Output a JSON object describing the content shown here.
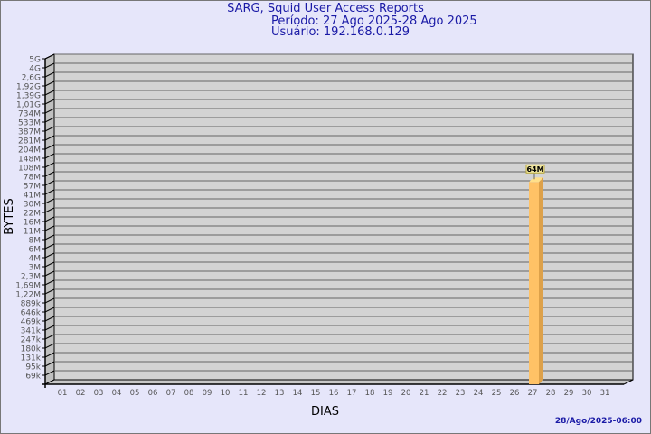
{
  "chart_data": {
    "type": "bar",
    "title": "SARG, Squid User Access Reports",
    "subtitle_period": "Período: 27 Ago 2025-28 Ago 2025",
    "subtitle_user": "Usuário: 192.168.0.129",
    "xlabel": "DIAS",
    "ylabel": "BYTES",
    "y_scale": "log",
    "y_ticks": [
      "5G",
      "4G",
      "2,6G",
      "1,92G",
      "1,39G",
      "1,01G",
      "734M",
      "533M",
      "387M",
      "281M",
      "204M",
      "148M",
      "108M",
      "78M",
      "57M",
      "41M",
      "30M",
      "22M",
      "16M",
      "11M",
      "8M",
      "6M",
      "4M",
      "3M",
      "2,3M",
      "1,69M",
      "1,22M",
      "889k",
      "646k",
      "469k",
      "341k",
      "247k",
      "180k",
      "131k",
      "95k",
      "69k"
    ],
    "categories": [
      "01",
      "02",
      "03",
      "04",
      "05",
      "06",
      "07",
      "08",
      "09",
      "10",
      "11",
      "12",
      "13",
      "14",
      "15",
      "16",
      "17",
      "18",
      "19",
      "20",
      "21",
      "22",
      "23",
      "24",
      "25",
      "26",
      "27",
      "28",
      "29",
      "30",
      "31"
    ],
    "bars": [
      {
        "day": "27",
        "value": "64M",
        "label": "64M"
      }
    ],
    "grid": true,
    "colors": {
      "background": "#e6e6fa",
      "plot": "#d3d3d3",
      "bar": "#ffc266",
      "bar_side": "#dda14a",
      "bar_top": "#ffe08a",
      "title": "#1a1aa6"
    }
  },
  "footer": {
    "timestamp": "28/Ago/2025-06:00"
  }
}
